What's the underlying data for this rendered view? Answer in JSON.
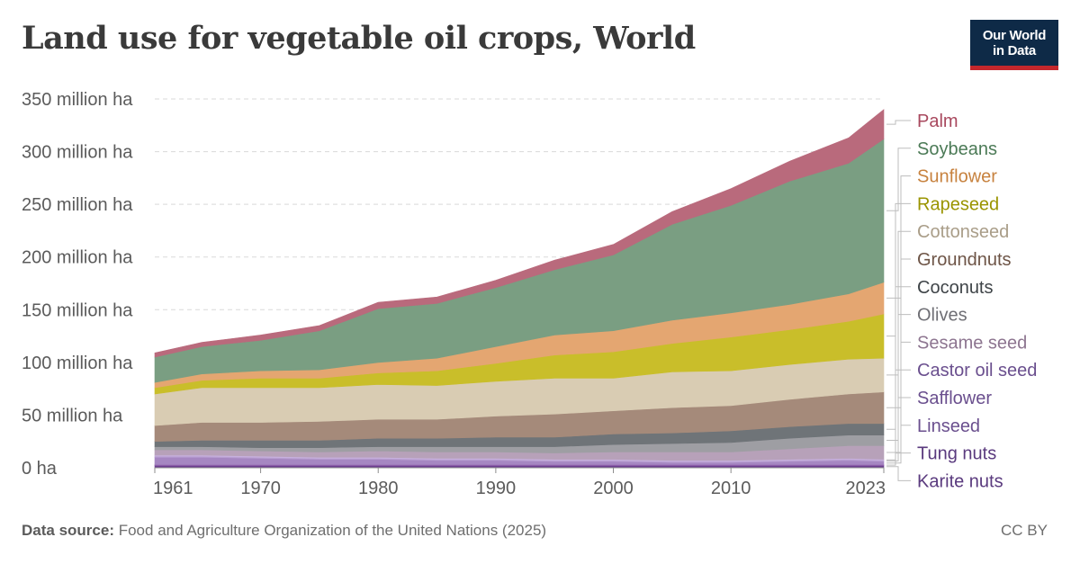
{
  "title": "Land use for vegetable oil crops, World",
  "logo": {
    "line1": "Our World",
    "line2": "in Data"
  },
  "footer": {
    "source_label": "Data source:",
    "source_text": "Food and Agriculture Organization of the United Nations (2025)",
    "license": "CC BY"
  },
  "colors": {
    "Karite nuts": "#6d3e91",
    "Tung nuts": "#8c5fa8",
    "Linseed": "#a687c2",
    "Safflower": "#b89fd1",
    "Castor oil seed": "#c7b0dd",
    "Sesame seed": "#b7a1b9",
    "Olives": "#9e9ea3",
    "Coconuts": "#6f7478",
    "Groundnuts": "#a58a7a",
    "Cottonseed": "#d9ccb3",
    "Rapeseed": "#c9be2a",
    "Sunflower": "#e4a671",
    "Soybeans": "#7a9e82",
    "Palm": "#b96a7c"
  },
  "label_colors": {
    "Palm": "#a8485e",
    "Soybeans": "#4b7a56",
    "Sunflower": "#c7823f",
    "Rapeseed": "#9a9400",
    "Cottonseed": "#a99d88",
    "Groundnuts": "#6d5446",
    "Coconuts": "#3f4448",
    "Olives": "#6f6f75",
    "Sesame seed": "#8d7590",
    "Castor oil seed": "#6a4f8e",
    "Safflower": "#6a4f8e",
    "Linseed": "#6a4f8e",
    "Tung nuts": "#5a3a7e",
    "Karite nuts": "#5a3a7e"
  },
  "chart_data": {
    "type": "area",
    "stacked": true,
    "title": "Land use for vegetable oil crops, World",
    "ylabel": "",
    "ylim": [
      0,
      350
    ],
    "yticks": [
      0,
      50,
      100,
      150,
      200,
      250,
      300,
      350
    ],
    "ytick_labels": [
      "0 ha",
      "50 million ha",
      "100 million ha",
      "150 million ha",
      "200 million ha",
      "250 million ha",
      "300 million ha",
      "350 million ha"
    ],
    "xlim": [
      1961,
      2023
    ],
    "xticks": [
      1961,
      1970,
      1980,
      1990,
      2000,
      2010,
      2023
    ],
    "xtick_labels": [
      "1961",
      "1970",
      "1980",
      "1990",
      "2000",
      "2010",
      "2023"
    ],
    "grid": "horizontal dashed",
    "legend": "right, labels at series end",
    "x": [
      1961,
      1965,
      1970,
      1975,
      1980,
      1985,
      1990,
      1995,
      2000,
      2005,
      2010,
      2015,
      2020,
      2023
    ],
    "series": [
      {
        "name": "Karite nuts",
        "values": [
          2,
          2,
          2,
          2,
          2,
          2,
          2,
          2,
          2,
          2,
          2,
          2,
          2,
          2
        ]
      },
      {
        "name": "Tung nuts",
        "values": [
          1,
          1,
          1,
          1,
          1,
          1,
          1,
          1,
          1,
          1,
          1,
          1,
          1,
          1
        ]
      },
      {
        "name": "Linseed",
        "values": [
          7,
          7,
          6,
          5,
          5,
          4,
          4,
          3,
          3,
          2,
          2,
          3,
          4,
          3
        ]
      },
      {
        "name": "Safflower",
        "values": [
          1,
          1,
          1,
          1,
          1,
          1,
          1,
          1,
          1,
          1,
          1,
          1,
          1,
          1
        ]
      },
      {
        "name": "Castor oil seed",
        "values": [
          1,
          1,
          1,
          1,
          1,
          1,
          1,
          1,
          1,
          1,
          1,
          1,
          1,
          1
        ]
      },
      {
        "name": "Sesame seed",
        "values": [
          5,
          5,
          5,
          5,
          6,
          6,
          6,
          6,
          7,
          8,
          8,
          10,
          12,
          13
        ]
      },
      {
        "name": "Olives",
        "values": [
          3,
          3,
          3,
          4,
          4,
          5,
          5,
          6,
          7,
          8,
          9,
          10,
          10,
          10
        ]
      },
      {
        "name": "Coconuts",
        "values": [
          5,
          6,
          7,
          7,
          8,
          8,
          9,
          9,
          10,
          10,
          11,
          11,
          11,
          11
        ]
      },
      {
        "name": "Groundnuts",
        "values": [
          15,
          17,
          17,
          18,
          18,
          18,
          20,
          22,
          22,
          24,
          24,
          26,
          28,
          30
        ]
      },
      {
        "name": "Cottonseed",
        "values": [
          30,
          33,
          33,
          32,
          33,
          32,
          33,
          34,
          31,
          34,
          33,
          33,
          33,
          32
        ]
      },
      {
        "name": "Rapeseed",
        "values": [
          6,
          7,
          9,
          9,
          11,
          14,
          17,
          22,
          25,
          27,
          32,
          33,
          36,
          42
        ]
      },
      {
        "name": "Sunflower",
        "values": [
          5,
          6,
          7,
          8,
          10,
          12,
          16,
          19,
          20,
          22,
          23,
          24,
          26,
          30
        ]
      },
      {
        "name": "Soybeans",
        "values": [
          24,
          26,
          29,
          37,
          51,
          52,
          56,
          62,
          72,
          91,
          102,
          117,
          124,
          136
        ]
      },
      {
        "name": "Palm",
        "values": [
          4,
          4,
          5,
          5,
          6,
          6,
          7,
          9,
          10,
          12,
          16,
          19,
          24,
          28
        ]
      }
    ]
  }
}
